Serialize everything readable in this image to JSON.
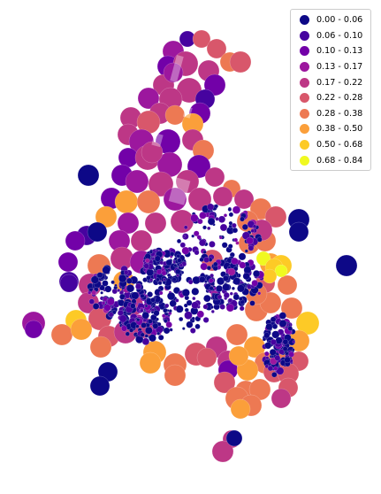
{
  "map": {
    "colormap": "plasma",
    "legend_placement": "top-right",
    "legend": [
      {
        "label": "0.00 - 0.06",
        "color": "#0d0887"
      },
      {
        "label": "0.06 - 0.10",
        "color": "#46039f"
      },
      {
        "label": "0.10 - 0.13",
        "color": "#7201a8"
      },
      {
        "label": "0.13 - 0.17",
        "color": "#9c179e"
      },
      {
        "label": "0.17 - 0.22",
        "color": "#bd3786"
      },
      {
        "label": "0.22 - 0.28",
        "color": "#d8576b"
      },
      {
        "label": "0.28 - 0.38",
        "color": "#ed7953"
      },
      {
        "label": "0.38 - 0.50",
        "color": "#fb9f3a"
      },
      {
        "label": "0.50 - 0.68",
        "color": "#fdca26"
      },
      {
        "label": "0.68 - 0.84",
        "color": "#f0f921"
      }
    ]
  }
}
